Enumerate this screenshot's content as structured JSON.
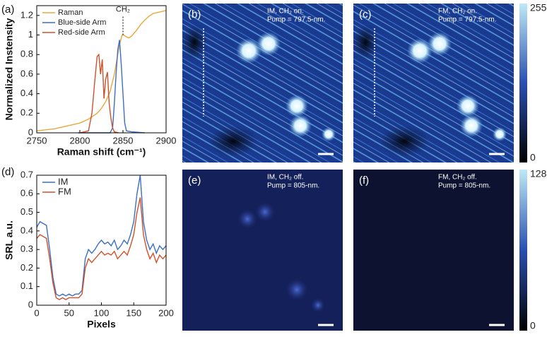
{
  "chart_data": [
    {
      "type": "line",
      "panel_label": "(a)",
      "xlabel": "Raman shift (cm⁻¹)",
      "ylabel": "Normalized Instensity",
      "xlim": [
        2750,
        2900
      ],
      "ylim": [
        0,
        1.3
      ],
      "xticks": [
        2750,
        2800,
        2850,
        2900
      ],
      "yticks": [
        0,
        0.2,
        0.4,
        0.6,
        0.8,
        1,
        1.2
      ],
      "legend": "upper left",
      "annotation": {
        "text": "CH₂",
        "x": 2850,
        "y": 1.0
      },
      "series": [
        {
          "name": "Raman",
          "color": "#e8a93a",
          "x": [
            2750,
            2760,
            2770,
            2780,
            2790,
            2800,
            2810,
            2820,
            2825,
            2830,
            2835,
            2840,
            2843,
            2846,
            2849,
            2851,
            2854,
            2857,
            2860,
            2865,
            2870,
            2875,
            2880,
            2885,
            2890,
            2895,
            2900
          ],
          "values": [
            0.02,
            0.03,
            0.04,
            0.06,
            0.08,
            0.1,
            0.14,
            0.2,
            0.25,
            0.32,
            0.42,
            0.6,
            0.75,
            0.9,
            1.0,
            1.0,
            0.98,
            0.97,
            0.99,
            1.04,
            1.1,
            1.15,
            1.19,
            1.22,
            1.23,
            1.24,
            1.25
          ]
        },
        {
          "name": "Blue-side Arm",
          "color": "#3a6fc4",
          "x": [
            2798,
            2835,
            2838,
            2840,
            2842,
            2844,
            2846,
            2848,
            2850,
            2852,
            2854,
            2860,
            2875
          ],
          "values": [
            0,
            0,
            0.05,
            0.3,
            0.6,
            0.85,
            0.95,
            0.7,
            0.4,
            0.1,
            0.02,
            0.01,
            0
          ]
        },
        {
          "name": "Red-side Arm",
          "color": "#d0502a",
          "x": [
            2800,
            2810,
            2814,
            2817,
            2820,
            2822,
            2824,
            2826,
            2828,
            2830,
            2832,
            2834,
            2836,
            2838,
            2840,
            2845
          ],
          "values": [
            0,
            0.02,
            0.2,
            0.5,
            0.78,
            0.8,
            0.6,
            0.75,
            0.35,
            0.55,
            0.62,
            0.3,
            0.15,
            0.05,
            0.01,
            0
          ]
        }
      ]
    },
    {
      "type": "line",
      "panel_label": "(d)",
      "xlabel": "Pixels",
      "ylabel": "SRL a.u.",
      "xlim": [
        0,
        200
      ],
      "ylim": [
        0,
        0.7
      ],
      "xticks": [
        0,
        50,
        100,
        150,
        200
      ],
      "yticks": [
        0,
        0.1,
        0.2,
        0.3,
        0.4,
        0.5,
        0.6,
        0.7
      ],
      "legend": "upper left",
      "x": [
        0,
        5,
        10,
        15,
        20,
        25,
        30,
        35,
        40,
        45,
        50,
        55,
        60,
        65,
        70,
        75,
        80,
        85,
        90,
        95,
        100,
        105,
        110,
        115,
        120,
        125,
        130,
        135,
        140,
        145,
        150,
        155,
        160,
        165,
        170,
        175,
        180,
        185,
        190,
        195,
        200
      ],
      "series": [
        {
          "name": "IM",
          "color": "#3a6fc4",
          "values": [
            0.42,
            0.45,
            0.44,
            0.43,
            0.3,
            0.15,
            0.06,
            0.05,
            0.06,
            0.05,
            0.06,
            0.05,
            0.06,
            0.06,
            0.08,
            0.25,
            0.3,
            0.28,
            0.3,
            0.33,
            0.35,
            0.33,
            0.34,
            0.32,
            0.35,
            0.3,
            0.32,
            0.35,
            0.33,
            0.38,
            0.45,
            0.6,
            0.7,
            0.45,
            0.35,
            0.3,
            0.33,
            0.28,
            0.32,
            0.3,
            0.32
          ]
        },
        {
          "name": "FM",
          "color": "#d0502a",
          "values": [
            0.36,
            0.38,
            0.37,
            0.36,
            0.25,
            0.12,
            0.04,
            0.03,
            0.04,
            0.03,
            0.04,
            0.04,
            0.04,
            0.04,
            0.06,
            0.2,
            0.25,
            0.23,
            0.25,
            0.27,
            0.29,
            0.27,
            0.28,
            0.27,
            0.29,
            0.25,
            0.27,
            0.29,
            0.27,
            0.32,
            0.38,
            0.5,
            0.58,
            0.38,
            0.3,
            0.25,
            0.28,
            0.23,
            0.27,
            0.25,
            0.27
          ]
        }
      ]
    }
  ],
  "images": [
    {
      "label": "(b)",
      "lines": [
        "IM, CH₂ on.",
        "Pump = 797.5-nm."
      ]
    },
    {
      "label": "(c)",
      "lines": [
        "FM, CH₂ on.",
        "Pump = 797.5-nm."
      ]
    },
    {
      "label": "(e)",
      "lines": [
        "IM, CH₂ off.",
        "Pump = 805-nm."
      ]
    },
    {
      "label": "(f)",
      "lines": [
        "FM, CH₂ off.",
        "Pump = 805-nm."
      ]
    }
  ],
  "colorbars": [
    {
      "max": 255,
      "min": 0
    },
    {
      "max": 128,
      "min": 0
    }
  ]
}
